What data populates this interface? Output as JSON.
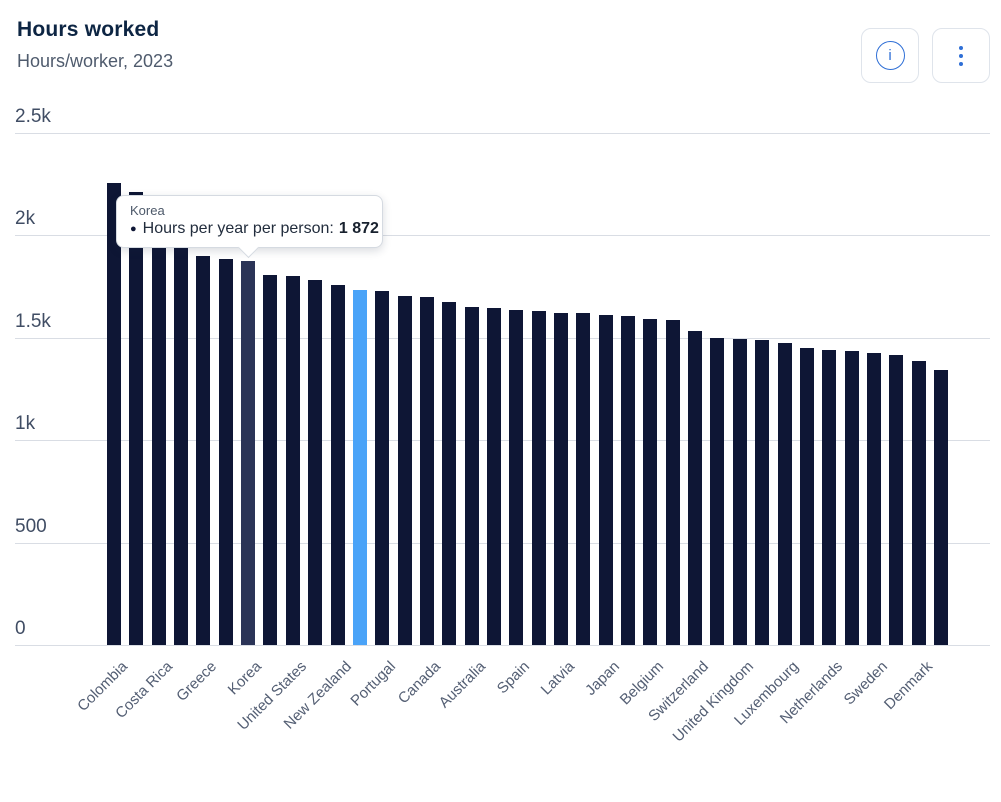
{
  "header": {
    "title": "Hours worked",
    "subtitle": "Hours/worker, 2023"
  },
  "toolbar": {
    "info_glyph": "i",
    "icons": {
      "info": "info-circle",
      "menu": "kebab-vertical"
    }
  },
  "tooltip": {
    "country": "Korea",
    "bullet": "●",
    "label": "Hours per year per person:",
    "value": "1 872"
  },
  "chart_data": {
    "type": "bar",
    "title": "Hours worked",
    "subtitle": "Hours/worker, 2023",
    "xlabel": "",
    "ylabel": "Hours per year per person",
    "ylim": [
      0,
      2500
    ],
    "grid": true,
    "legend_position": "none",
    "yticks": [
      {
        "label": "2.5k",
        "value": 2500
      },
      {
        "label": "2k",
        "value": 2000
      },
      {
        "label": "1.5k",
        "value": 1500
      },
      {
        "label": "1k",
        "value": 1000
      },
      {
        "label": "500",
        "value": 500
      },
      {
        "label": "0",
        "value": 0
      }
    ],
    "bar_color": "#0e1635",
    "hover_color": "#2b3457",
    "highlight_color": "#4aa3f8",
    "grid_color": "#d9dde4",
    "hovered_index": 6,
    "highlighted_index": 11,
    "bars": [
      {
        "label": "Colombia",
        "value": 2254
      },
      {
        "label": "",
        "value": 2208
      },
      {
        "label": "Costa Rica",
        "value": 2171
      },
      {
        "label": "",
        "value": 1953
      },
      {
        "label": "Greece",
        "value": 1897
      },
      {
        "label": "",
        "value": 1883
      },
      {
        "label": "Korea",
        "value": 1872
      },
      {
        "label": "",
        "value": 1806
      },
      {
        "label": "United States",
        "value": 1800
      },
      {
        "label": "",
        "value": 1780
      },
      {
        "label": "New Zealand",
        "value": 1757
      },
      {
        "label": "",
        "value": 1734
      },
      {
        "label": "Portugal",
        "value": 1728
      },
      {
        "label": "",
        "value": 1704
      },
      {
        "label": "Canada",
        "value": 1697
      },
      {
        "label": "",
        "value": 1673
      },
      {
        "label": "Australia",
        "value": 1650
      },
      {
        "label": "",
        "value": 1644
      },
      {
        "label": "Spain",
        "value": 1632
      },
      {
        "label": "",
        "value": 1627
      },
      {
        "label": "Latvia",
        "value": 1621
      },
      {
        "label": "",
        "value": 1618
      },
      {
        "label": "Japan",
        "value": 1611
      },
      {
        "label": "",
        "value": 1603
      },
      {
        "label": "Belgium",
        "value": 1592
      },
      {
        "label": "",
        "value": 1585
      },
      {
        "label": "Switzerland",
        "value": 1533
      },
      {
        "label": "",
        "value": 1497
      },
      {
        "label": "United Kingdom",
        "value": 1493
      },
      {
        "label": "",
        "value": 1489
      },
      {
        "label": "Luxembourg",
        "value": 1473
      },
      {
        "label": "",
        "value": 1447
      },
      {
        "label": "Netherlands",
        "value": 1440
      },
      {
        "label": "",
        "value": 1436
      },
      {
        "label": "Sweden",
        "value": 1422
      },
      {
        "label": "",
        "value": 1416
      },
      {
        "label": "Denmark",
        "value": 1383
      },
      {
        "label": "",
        "value": 1341
      }
    ]
  }
}
